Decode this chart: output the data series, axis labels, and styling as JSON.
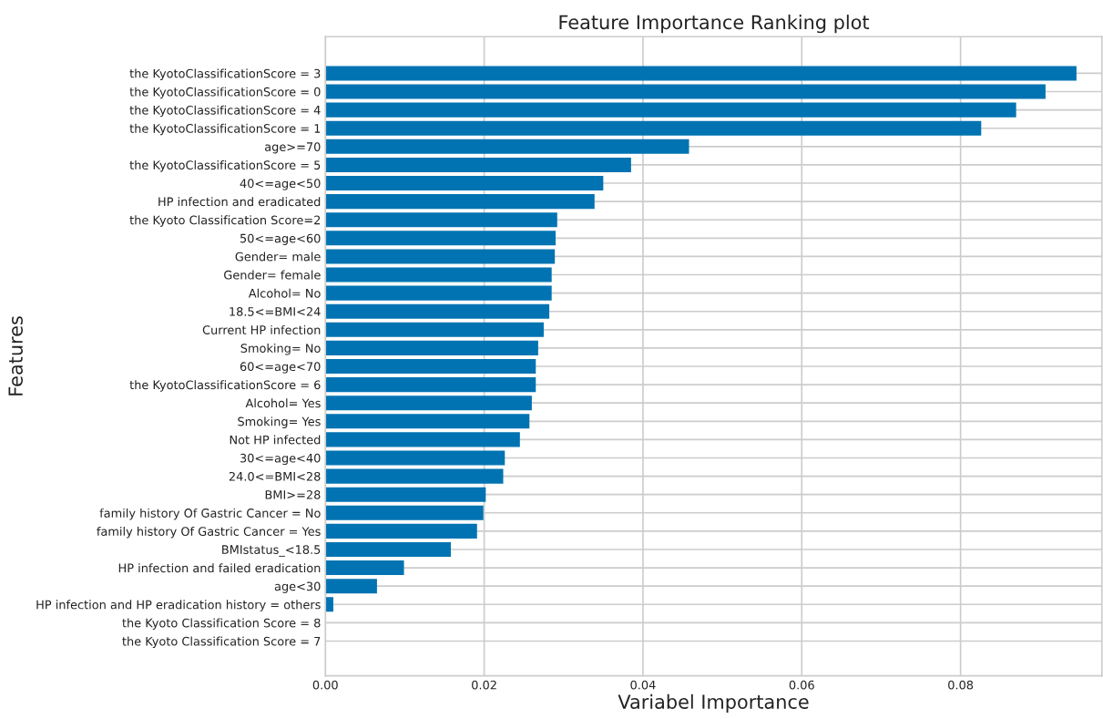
{
  "chart_data": {
    "type": "bar",
    "orientation": "horizontal",
    "title": "Feature Importance Ranking plot",
    "xlabel": "Variabel Importance",
    "ylabel": "Features",
    "categories": [
      "the KyotoClassificationScore = 3",
      "the KyotoClassificationScore = 0",
      "the KyotoClassificationScore = 4",
      "the KyotoClassificationScore = 1",
      "age>=70",
      "the KyotoClassificationScore = 5",
      "40<=age<50",
      "HP infection and eradicated",
      "the Kyoto Classification Score=2",
      "50<=age<60",
      "Gender= male",
      "Gender= female",
      "Alcohol= No",
      "18.5<=BMI<24",
      "Current HP infection",
      "Smoking= No",
      "60<=age<70",
      "the KyotoClassificationScore = 6",
      "Alcohol= Yes",
      "Smoking= Yes",
      "Not HP infected",
      "30<=age<40",
      "24.0<=BMI<28",
      "BMI>=28",
      "family history Of Gastric Cancer = No",
      "family history Of Gastric Cancer = Yes",
      "BMIstatus_<18.5",
      "HP infection and failed eradication",
      "age<30",
      "HP infection and HP eradication history = others",
      "the Kyoto Classification Score = 8",
      "the Kyoto Classification Score = 7"
    ],
    "values": [
      0.0946,
      0.0907,
      0.087,
      0.0826,
      0.0458,
      0.0385,
      0.035,
      0.0339,
      0.0292,
      0.029,
      0.0289,
      0.0285,
      0.0285,
      0.0282,
      0.0275,
      0.0268,
      0.0265,
      0.0265,
      0.026,
      0.0257,
      0.0245,
      0.0226,
      0.0224,
      0.0202,
      0.0199,
      0.0191,
      0.0158,
      0.0099,
      0.0065,
      0.001,
      0.0,
      0.0
    ],
    "color": "#0173b2",
    "xlim": [
      0,
      0.0978
    ],
    "xticks": [
      {
        "value": 0,
        "label": "0.00"
      },
      {
        "value": 0.02,
        "label": "0.02"
      },
      {
        "value": 0.04,
        "label": "0.04"
      },
      {
        "value": 0.06,
        "label": "0.06"
      },
      {
        "value": 0.08,
        "label": "0.08"
      }
    ],
    "grid": true
  }
}
